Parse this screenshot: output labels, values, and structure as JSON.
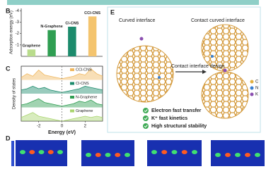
{
  "panels": {
    "b": "B",
    "c": "C",
    "d": "D",
    "e": "E"
  },
  "chart_data": [
    {
      "type": "bar",
      "ylabel": "Adsorption energy (eV)",
      "categories": [
        "Graphene",
        "N-Graphene",
        "Cl-CNS",
        "CCl-CNS"
      ],
      "values": [
        -0.6,
        -2.3,
        -2.6,
        -3.5
      ],
      "colors": [
        "#b9dc8c",
        "#2f9e52",
        "#1c8b6c",
        "#f4c46e"
      ],
      "ylim": [
        0,
        -4.2
      ],
      "yticks": [
        -1,
        -2,
        -3,
        -4
      ]
    },
    {
      "type": "dos",
      "xlabel": "Energy (eV)",
      "ylabel": "Density of states",
      "x": [
        -3.5,
        -3,
        -2.5,
        -2,
        -1.5,
        -1,
        -0.5,
        0,
        0.5,
        1,
        1.5,
        2,
        2.5,
        3,
        3.5
      ],
      "xlim": [
        -3.5,
        3.5
      ],
      "xticks": [
        -2,
        0,
        2
      ],
      "ylim": [
        0,
        1
      ],
      "series": [
        {
          "name": "CCl-CNS",
          "color": "#f0b860",
          "values": [
            0.2,
            0.5,
            0.3,
            0.8,
            0.4,
            0.3,
            0.2,
            0.1,
            0.2,
            0.3,
            0.5,
            0.4,
            0.9,
            0.5,
            0.3
          ]
        },
        {
          "name": "Cl-CNS",
          "color": "#1c8b6c",
          "values": [
            0.3,
            0.4,
            0.6,
            0.4,
            0.5,
            0.3,
            0.2,
            0.1,
            0.2,
            0.3,
            0.4,
            0.6,
            0.5,
            0.4,
            0.3
          ]
        },
        {
          "name": "N-Graphene",
          "color": "#2f9e52",
          "values": [
            0.2,
            0.3,
            0.5,
            0.7,
            0.4,
            0.3,
            0.2,
            0.1,
            0.2,
            0.3,
            0.5,
            0.4,
            0.6,
            0.3,
            0.2
          ]
        },
        {
          "name": "Graphene",
          "color": "#a9d46e",
          "values": [
            0.3,
            0.5,
            0.7,
            0.4,
            0.3,
            0.2,
            0.1,
            0.0,
            0.1,
            0.2,
            0.3,
            0.4,
            0.3,
            0.4,
            0.3
          ]
        }
      ]
    }
  ],
  "diagram": {
    "left_title": "Curved interface",
    "right_title": "Contact curved interface",
    "arrow_label": "Contact interface design",
    "legend": [
      "C",
      "N",
      "K"
    ],
    "bullets": [
      "Electron fast transfer",
      "K⁺ fast  kinetics",
      "High structural stability"
    ]
  }
}
